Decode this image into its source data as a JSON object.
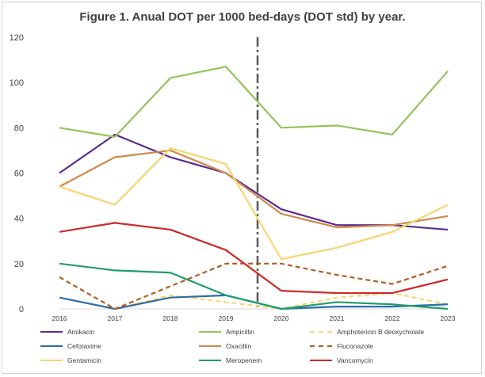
{
  "chart_data": {
    "type": "line",
    "title": "Figure 1. Anual DOT per 1000 bed-days (DOT std)  by year.",
    "xlabel": "",
    "ylabel": "",
    "x": [
      "2016",
      "2017",
      "2018",
      "2019",
      "2020",
      "2021",
      "2022",
      "2023"
    ],
    "ylim": [
      0,
      120
    ],
    "yticks": [
      0,
      20,
      40,
      60,
      80,
      100,
      120
    ],
    "grid": false,
    "legend_position": "bottom",
    "annotations": [
      {
        "type": "vertical-dash-dot-line",
        "between": [
          "2019",
          "2020"
        ],
        "color": "#595959"
      }
    ],
    "series": [
      {
        "name": "Amikacin",
        "color": "#5b2c8e",
        "dash": "solid",
        "values": [
          60,
          77,
          67,
          60,
          44,
          37,
          37,
          35
        ]
      },
      {
        "name": "Ampicillin",
        "color": "#92c45a",
        "dash": "solid",
        "values": [
          80,
          76,
          102,
          107,
          80,
          81,
          77,
          105
        ]
      },
      {
        "name": "Amphotericin B deoxycholate",
        "color": "#f7d774",
        "dash": "dashed",
        "values": [
          null,
          0,
          6,
          3,
          0,
          5,
          7,
          2
        ]
      },
      {
        "name": "Cefotaxime",
        "color": "#2e6da4",
        "dash": "solid",
        "values": [
          5,
          0,
          5,
          6,
          0,
          1,
          1,
          2
        ]
      },
      {
        "name": "Oxacillin",
        "color": "#d08a4a",
        "dash": "solid",
        "values": [
          54,
          67,
          70,
          60,
          42,
          36,
          37,
          41
        ]
      },
      {
        "name": "Fluconazole",
        "color": "#b15e1f",
        "dash": "dashed",
        "values": [
          14,
          0,
          10,
          20,
          20,
          15,
          11,
          19
        ]
      },
      {
        "name": "Gentamicin",
        "color": "#f7d46e",
        "dash": "solid",
        "values": [
          54,
          46,
          71,
          64,
          22,
          27,
          34,
          46
        ]
      },
      {
        "name": "Meropenem",
        "color": "#1e9e6a",
        "dash": "solid",
        "values": [
          20,
          17,
          16,
          6,
          0,
          3,
          2,
          0
        ]
      },
      {
        "name": "Vancomycin",
        "color": "#cc2a2a",
        "dash": "solid",
        "values": [
          34,
          38,
          35,
          26,
          8,
          7,
          7,
          13
        ]
      }
    ]
  }
}
